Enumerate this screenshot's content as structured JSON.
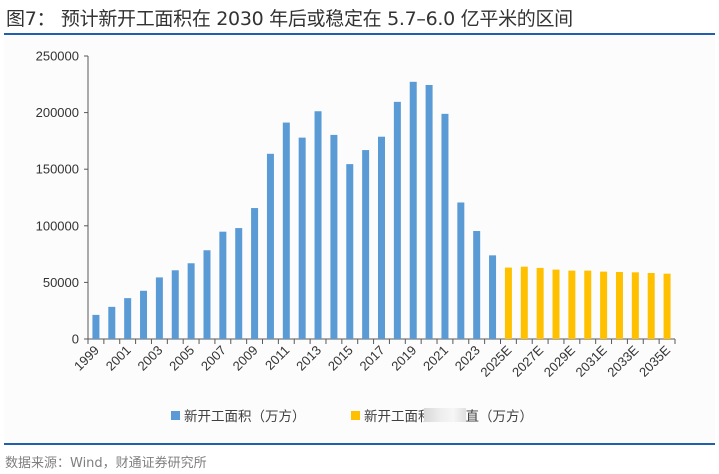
{
  "header": {
    "title": "图7： 预计新开工面积在 2030 年后或稳定在 5.7–6.0 亿平米的区间"
  },
  "footer": {
    "source": "数据来源：Wind，财通证券研究所"
  },
  "colors": {
    "actual": "#5B9BD5",
    "forecast": "#FFC000",
    "rule": "#1F5FAE"
  },
  "chart_data": {
    "type": "bar",
    "title": "",
    "xlabel": "",
    "ylabel": "",
    "ylim": [
      0,
      250000
    ],
    "yticks": [
      "0",
      "50000",
      "100000",
      "150000",
      "200000",
      "250000"
    ],
    "grid": false,
    "legend_position": "bottom",
    "categories": [
      "1999",
      "2000",
      "2001",
      "2002",
      "2003",
      "2004",
      "2005",
      "2006",
      "2007",
      "2008",
      "2009",
      "2010",
      "2011",
      "2012",
      "2013",
      "2014",
      "2015",
      "2016",
      "2017",
      "2018",
      "2019",
      "2020",
      "2021",
      "2022",
      "2023",
      "2024",
      "2025E",
      "2026E",
      "2027E",
      "2028E",
      "2029E",
      "2030E",
      "2031E",
      "2032E",
      "2033E",
      "2034E",
      "2035E"
    ],
    "xtick_labels": [
      "1999",
      "2001",
      "2003",
      "2005",
      "2007",
      "2009",
      "2011",
      "2013",
      "2015",
      "2017",
      "2019",
      "2021",
      "2023",
      "2025E",
      "2027E",
      "2029E",
      "2031E",
      "2033E",
      "2035E"
    ],
    "series": [
      {
        "name": "新开工面积（万方）",
        "legend_text": "新开工面积（万方）",
        "color_key": "actual",
        "values": [
          21300,
          28400,
          36100,
          42600,
          54400,
          60700,
          66900,
          78400,
          94800,
          98000,
          115700,
          163600,
          191200,
          177900,
          201200,
          180300,
          154500,
          166900,
          178700,
          209500,
          227200,
          224400,
          198900,
          120600,
          95400,
          73900,
          null,
          null,
          null,
          null,
          null,
          null,
          null,
          null,
          null,
          null,
          null
        ]
      },
      {
        "name": "新开工面积预测值（万方）",
        "legend_visible_start": "新开工面积",
        "legend_visible_end": "直（万方）",
        "color_key": "forecast",
        "values": [
          null,
          null,
          null,
          null,
          null,
          null,
          null,
          null,
          null,
          null,
          null,
          null,
          null,
          null,
          null,
          null,
          null,
          null,
          null,
          null,
          null,
          null,
          null,
          null,
          null,
          null,
          63100,
          63900,
          62800,
          61300,
          60400,
          60400,
          59500,
          59200,
          58900,
          58300,
          57700
        ]
      }
    ]
  }
}
